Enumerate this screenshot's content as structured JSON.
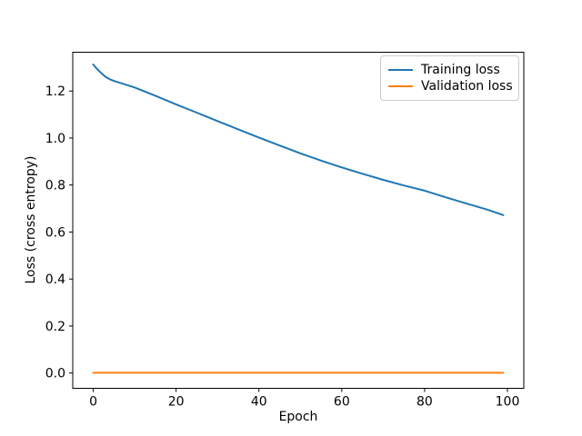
{
  "chart_data": {
    "type": "line",
    "title": "",
    "xlabel": "Epoch",
    "ylabel": "Loss (cross entropy)",
    "xlim": [
      -4.95,
      103.95
    ],
    "ylim": [
      -0.065,
      1.365
    ],
    "xticks": [
      0,
      20,
      40,
      60,
      80,
      100
    ],
    "xticklabels": [
      "0",
      "20",
      "40",
      "60",
      "80",
      "100"
    ],
    "yticks": [
      0.0,
      0.2,
      0.4,
      0.6,
      0.8,
      1.0,
      1.2
    ],
    "yticklabels": [
      "0.0",
      "0.2",
      "0.4",
      "0.6",
      "0.8",
      "1.0",
      "1.2"
    ],
    "grid": false,
    "legend_position": "upper right",
    "x": [
      0,
      1,
      2,
      3,
      4,
      5,
      10,
      15,
      20,
      25,
      30,
      35,
      40,
      45,
      50,
      55,
      60,
      65,
      70,
      75,
      80,
      85,
      90,
      95,
      99
    ],
    "series": [
      {
        "name": "Training loss",
        "color": "#1f77b4",
        "values": [
          1.313,
          1.292,
          1.275,
          1.26,
          1.25,
          1.243,
          1.215,
          1.18,
          1.143,
          1.108,
          1.072,
          1.037,
          1.002,
          0.968,
          0.935,
          0.904,
          0.875,
          0.848,
          0.822,
          0.798,
          0.776,
          0.748,
          0.722,
          0.696,
          0.672
        ]
      },
      {
        "name": "Validation loss",
        "color": "#ff7f0e",
        "values": [
          0.001,
          0.001,
          0.001,
          0.001,
          0.001,
          0.001,
          0.001,
          0.001,
          0.001,
          0.001,
          0.001,
          0.001,
          0.001,
          0.001,
          0.001,
          0.001,
          0.001,
          0.001,
          0.001,
          0.001,
          0.001,
          0.001,
          0.001,
          0.001,
          0.001
        ]
      }
    ]
  }
}
